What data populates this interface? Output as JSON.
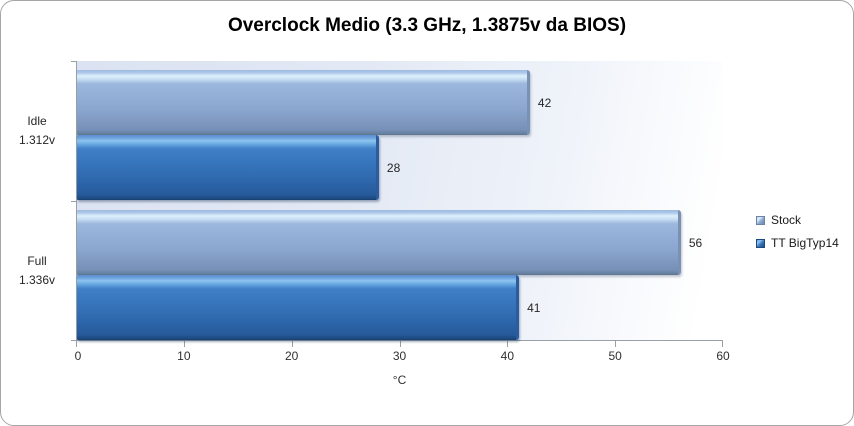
{
  "chart_data": {
    "type": "bar",
    "orientation": "horizontal",
    "title": "Overclock Medio (3.3 GHz, 1.3875v da BIOS)",
    "categories": [
      "Idle 1.312v",
      "Full 1.336v"
    ],
    "category_lines": [
      [
        "Idle",
        "1.312v"
      ],
      [
        "Full",
        "1.336v"
      ]
    ],
    "series": [
      {
        "name": "Stock",
        "values": [
          42,
          56
        ],
        "color": "#92afd7"
      },
      {
        "name": "TT BigTyp14",
        "values": [
          28,
          41
        ],
        "color": "#3876bd"
      }
    ],
    "xlabel": "°C",
    "xlim": [
      0,
      60
    ],
    "xticks": [
      0,
      10,
      20,
      30,
      40,
      50,
      60
    ],
    "grid": false,
    "legend_position": "right",
    "colors": {
      "plot_bg_start": "#dbe2f1",
      "plot_bg_end": "#ffffff",
      "axis": "#9aa0a8",
      "text": "#262626",
      "frame_border": "#a6a6a6"
    }
  }
}
